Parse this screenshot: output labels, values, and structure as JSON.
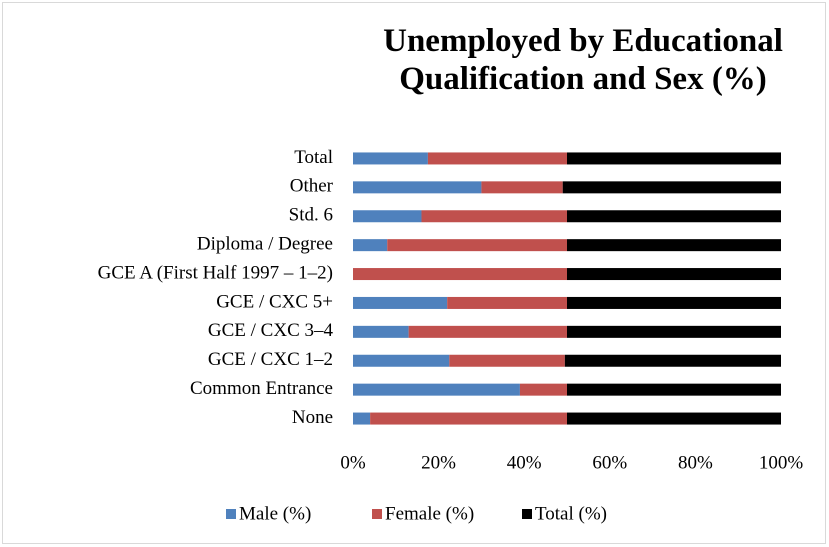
{
  "chart_data": {
    "type": "stacked_percent_barh",
    "title": "Unemployed by Educational Qualification and Sex (%)",
    "categories": [
      "Total",
      "Other",
      "Std. 6",
      "Diploma / Degree",
      "GCE A (First Half 1997 – 1–2)",
      "GCE / CXC 5+",
      "GCE / CXC 3–4",
      "GCE / CXC 1–2",
      "Common Entrance",
      "None"
    ],
    "series": [
      {
        "name": "Male (%)",
        "color": "#4f81bd",
        "values": [
          17.5,
          30,
          16,
          8,
          0,
          22,
          13,
          22.5,
          39,
          4
        ]
      },
      {
        "name": "Female (%)",
        "color": "#c0504d",
        "values": [
          32.5,
          19,
          34,
          42,
          50,
          28,
          37,
          27,
          11,
          46
        ]
      },
      {
        "name": "Total (%)",
        "color": "#000000",
        "values": [
          50,
          51,
          50,
          50,
          50,
          50,
          50,
          50.5,
          50,
          50
        ]
      }
    ],
    "xlim": [
      0,
      100
    ],
    "xticks": [
      {
        "value": 0,
        "label": "0%"
      },
      {
        "value": 20,
        "label": "20%"
      },
      {
        "value": 40,
        "label": "40%"
      },
      {
        "value": 60,
        "label": "60%"
      },
      {
        "value": 80,
        "label": "80%"
      },
      {
        "value": 100,
        "label": "100%"
      }
    ],
    "grid": false,
    "legend": "bottom"
  }
}
